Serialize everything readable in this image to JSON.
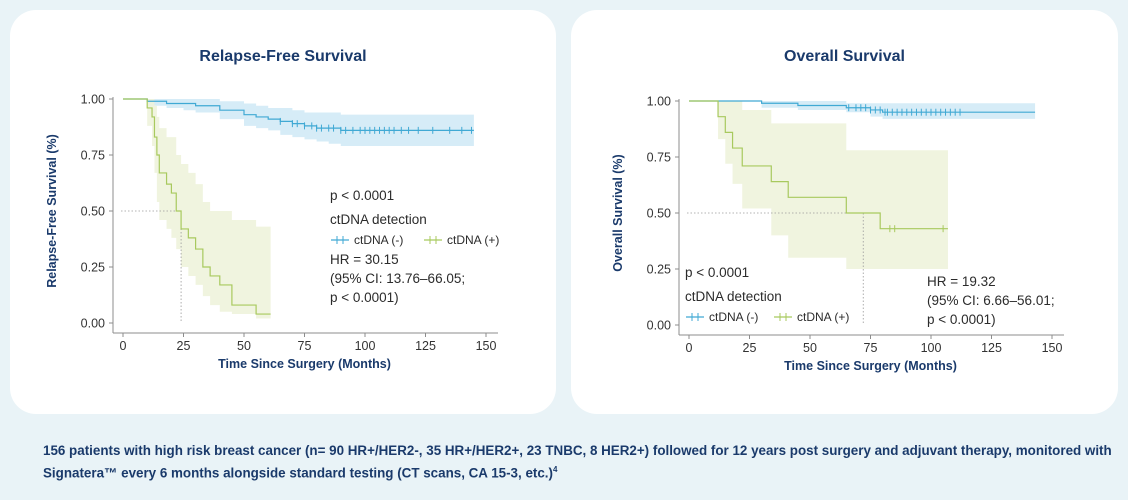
{
  "colors": {
    "neg_line": "#40a9d4",
    "neg_band": "#d4ebf7",
    "pos_line": "#a8c95e",
    "pos_band": "#eef3db",
    "title": "#1a3a6b",
    "axis": "#8c8c8c",
    "card": "#ffffff",
    "page": "#e9f3f7"
  },
  "footnote": {
    "text": "156 patients with high risk breast cancer (n= 90 HR+/HER2-, 35 HR+/HER2+, 23 TNBC, 8 HER2+) followed for 12 years post surgery and adjuvant therapy, monitored with Signatera™ every 6 months alongside standard testing (CT scans, CA 15-3, etc.)",
    "ref": "4"
  },
  "chart_data": [
    {
      "type": "line",
      "subtype": "kaplan-meier",
      "title": "Relapse-Free Survival",
      "xlabel": "Time Since Surgery (Months)",
      "ylabel": "Relapse-Free Survival (%)",
      "xlim": [
        0,
        150
      ],
      "ylim": [
        0,
        1
      ],
      "xticks": [
        "0",
        "25",
        "50",
        "75",
        "100",
        "125",
        "150"
      ],
      "yticks": [
        "0.00",
        "0.25",
        "0.50",
        "0.75",
        "1.00"
      ],
      "median_reference": {
        "survival": 0.5,
        "time": 24
      },
      "annotations": {
        "p_value": "p < 0.0001",
        "legend_title": "ctDNA detection",
        "hr_lines": [
          "HR = 30.15",
          "(95% CI: 13.76–66.05;",
          "p < 0.0001)"
        ]
      },
      "series": [
        {
          "name": "ctDNA (-)",
          "x": [
            0,
            10,
            18,
            25,
            30,
            40,
            50,
            55,
            60,
            65,
            70,
            75,
            80,
            85,
            90,
            145
          ],
          "y": [
            1.0,
            0.99,
            0.98,
            0.98,
            0.97,
            0.95,
            0.93,
            0.92,
            0.91,
            0.9,
            0.89,
            0.88,
            0.87,
            0.87,
            0.86,
            0.86
          ],
          "ci_upper": [
            1.0,
            1.0,
            1.0,
            1.0,
            1.0,
            0.99,
            0.98,
            0.97,
            0.96,
            0.96,
            0.95,
            0.94,
            0.94,
            0.94,
            0.93,
            0.93
          ],
          "ci_lower": [
            1.0,
            0.97,
            0.96,
            0.95,
            0.94,
            0.91,
            0.88,
            0.87,
            0.86,
            0.84,
            0.83,
            0.82,
            0.81,
            0.8,
            0.79,
            0.79
          ],
          "censor_times": [
            65,
            70,
            72,
            75,
            78,
            80,
            82,
            85,
            87,
            90,
            92,
            95,
            98,
            100,
            102,
            104,
            106,
            108,
            110,
            112,
            115,
            118,
            122,
            128,
            135,
            140,
            144
          ]
        },
        {
          "name": "ctDNA (+)",
          "x": [
            0,
            10,
            12,
            13,
            14,
            15,
            18,
            20,
            22,
            24,
            27,
            30,
            33,
            36,
            40,
            45,
            55,
            61
          ],
          "y": [
            1.0,
            0.96,
            0.92,
            0.83,
            0.75,
            0.67,
            0.62,
            0.58,
            0.5,
            0.42,
            0.38,
            0.33,
            0.25,
            0.21,
            0.17,
            0.08,
            0.04,
            0.04
          ],
          "ci_upper": [
            1.0,
            1.0,
            1.0,
            0.97,
            0.92,
            0.87,
            0.83,
            0.83,
            0.75,
            0.71,
            0.67,
            0.62,
            0.54,
            0.5,
            0.5,
            0.46,
            0.43,
            0.43
          ],
          "ci_lower": [
            1.0,
            0.88,
            0.79,
            0.67,
            0.54,
            0.46,
            0.42,
            0.38,
            0.33,
            0.25,
            0.21,
            0.17,
            0.12,
            0.08,
            0.05,
            0.04,
            0.02,
            0.02
          ],
          "censor_times": []
        }
      ]
    },
    {
      "type": "line",
      "subtype": "kaplan-meier",
      "title": "Overall Survival",
      "xlabel": "Time Since Surgery (Months)",
      "ylabel": "Overall Survival (%)",
      "xlim": [
        0,
        150
      ],
      "ylim": [
        0,
        1
      ],
      "xticks": [
        "0",
        "25",
        "50",
        "75",
        "100",
        "125",
        "150"
      ],
      "yticks": [
        "0.00",
        "0.25",
        "0.50",
        "0.75",
        "1.00"
      ],
      "median_reference": {
        "survival": 0.5,
        "time": 72
      },
      "annotations": {
        "p_value": "p < 0.0001",
        "legend_title": "ctDNA detection",
        "hr_lines": [
          "HR = 19.32",
          "(95% CI: 6.66–56.01;",
          "p < 0.0001)"
        ]
      },
      "series": [
        {
          "name": "ctDNA (-)",
          "x": [
            0,
            30,
            45,
            65,
            75,
            80,
            143
          ],
          "y": [
            1.0,
            0.99,
            0.98,
            0.97,
            0.96,
            0.95,
            0.95
          ],
          "ci_upper": [
            1.0,
            1.0,
            1.0,
            0.99,
            0.99,
            0.99,
            0.99
          ],
          "ci_lower": [
            1.0,
            0.97,
            0.96,
            0.95,
            0.93,
            0.92,
            0.92
          ],
          "censor_times": [
            66,
            69,
            71,
            73,
            75,
            77,
            79,
            81,
            82,
            84,
            86,
            88,
            90,
            92,
            94,
            96,
            98,
            100,
            102,
            104,
            106,
            108,
            110,
            112
          ]
        },
        {
          "name": "ctDNA (+)",
          "x": [
            0,
            12,
            15,
            18,
            22,
            27,
            34,
            41,
            45,
            65,
            79,
            107
          ],
          "y": [
            1.0,
            0.93,
            0.86,
            0.79,
            0.71,
            0.71,
            0.64,
            0.57,
            0.57,
            0.5,
            0.43,
            0.43
          ],
          "ci_upper": [
            1.0,
            1.0,
            1.0,
            1.0,
            0.96,
            0.96,
            0.9,
            0.9,
            0.9,
            0.78,
            0.78,
            0.78
          ],
          "ci_lower": [
            1.0,
            0.83,
            0.72,
            0.63,
            0.52,
            0.52,
            0.4,
            0.3,
            0.3,
            0.25,
            0.25,
            0.25
          ],
          "censor_times": [
            83,
            85,
            105
          ]
        }
      ]
    }
  ]
}
